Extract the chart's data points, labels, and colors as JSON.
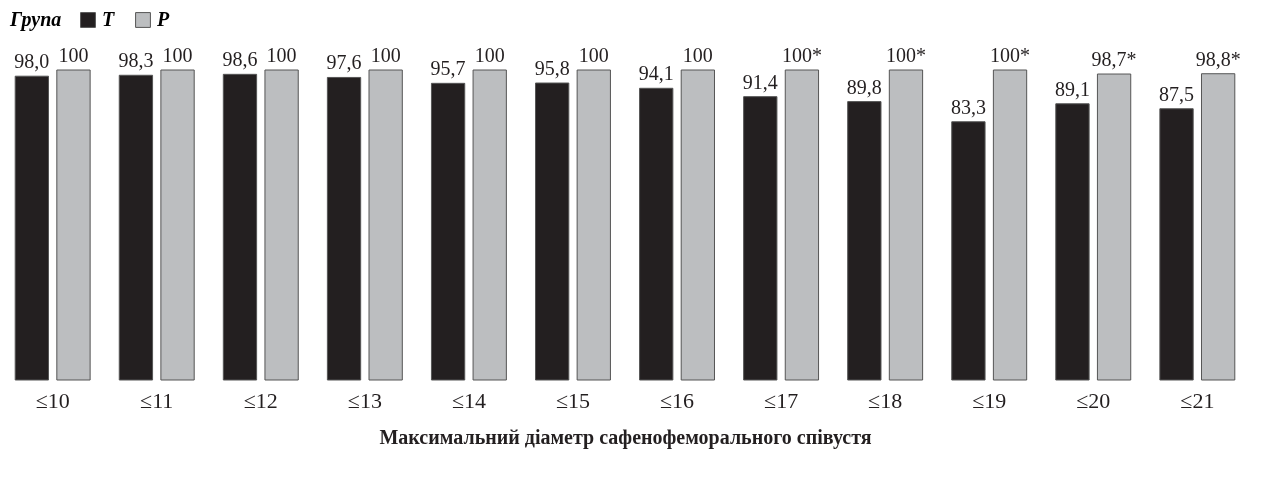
{
  "chart_data": {
    "type": "bar",
    "xlabel": "Максимальний діаметр сафенофеморального співустя",
    "legend_title": "Група",
    "legend": "top left",
    "categories": [
      "≤10",
      "≤11",
      "≤12",
      "≤13",
      "≤14",
      "≤15",
      "≤16",
      "≤17",
      "≤18",
      "≤19",
      "≤20",
      "≤21"
    ],
    "series": [
      {
        "name": "T",
        "color": "#231f20",
        "values": [
          98.0,
          98.3,
          98.6,
          97.6,
          95.7,
          95.8,
          94.1,
          91.4,
          89.8,
          83.3,
          89.1,
          87.5
        ],
        "value_labels": [
          "98,0",
          "98,3",
          "98,6",
          "97,6",
          "95,7",
          "95,8",
          "94,1",
          "91,4",
          "89,8",
          "83,3",
          "89,1",
          "87,5"
        ]
      },
      {
        "name": "P",
        "color": "#bcbec0",
        "values": [
          100,
          100,
          100,
          100,
          100,
          100,
          100,
          100,
          100,
          100,
          98.7,
          98.8
        ],
        "value_labels": [
          "100",
          "100",
          "100",
          "100",
          "100",
          "100",
          "100",
          "100*",
          "100*",
          "100*",
          "98,7*",
          "98,8*"
        ]
      }
    ],
    "relative": false
  }
}
